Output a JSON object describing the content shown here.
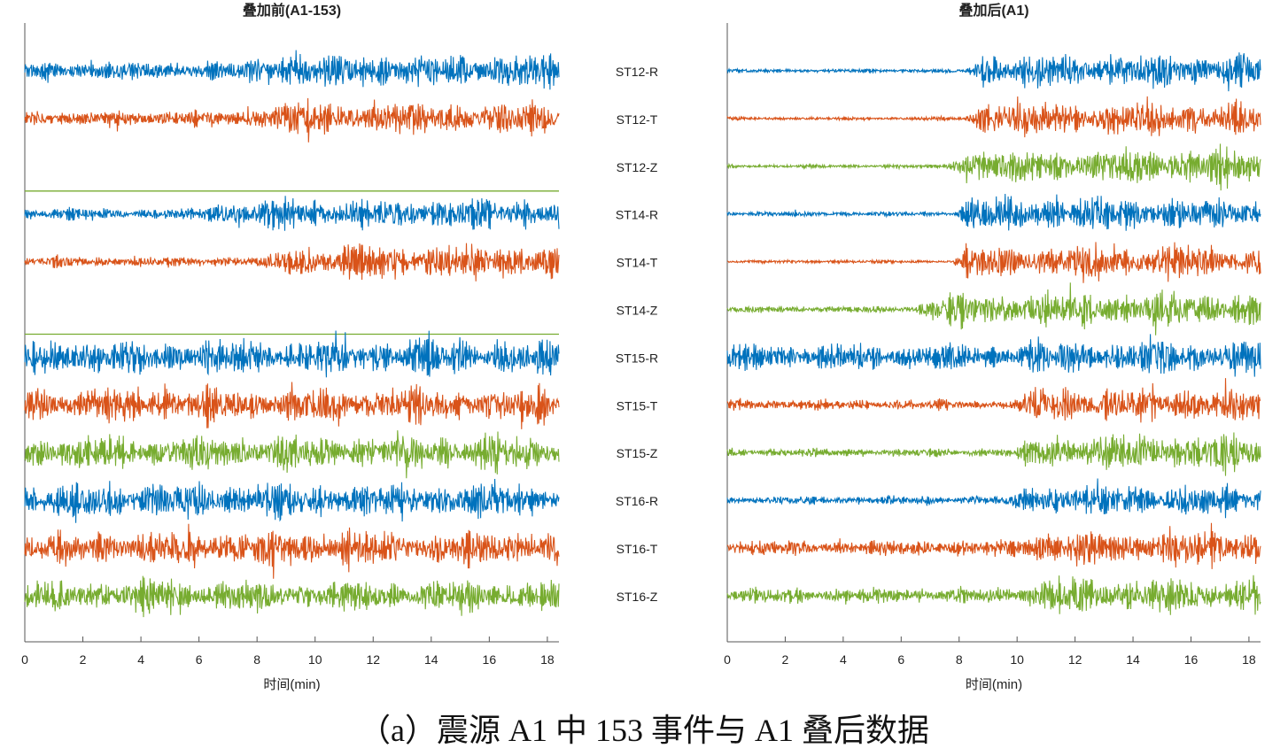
{
  "caption": "（a）震源 A1 中 153 事件与 A1 叠后数据",
  "colors": {
    "R": "#0072BD",
    "T": "#D95319",
    "Z": "#77AC30",
    "axis": "#555555",
    "text": "#222222"
  },
  "chart_data": [
    {
      "type": "line",
      "title": "叠加前(A1-153)",
      "xlabel": "时间(min)",
      "ylabel": "",
      "xlim": [
        0,
        18.4
      ],
      "xticks": [
        0,
        2,
        4,
        6,
        8,
        10,
        12,
        14,
        16,
        18
      ],
      "xtick_labels": [
        "0",
        "2",
        "4",
        "6",
        "8",
        "10",
        "12",
        "14",
        "16",
        "18"
      ],
      "traces": [
        {
          "name": "ST12-R",
          "component": "R",
          "amplitude": 1.0,
          "onset_min": 7.5,
          "pre_level": 0.55,
          "flat": false
        },
        {
          "name": "ST12-T",
          "component": "T",
          "amplitude": 1.0,
          "onset_min": 7.5,
          "pre_level": 0.45,
          "flat": false
        },
        {
          "name": "ST12-Z",
          "component": "Z",
          "amplitude": 0.0,
          "onset_min": 0,
          "pre_level": 0,
          "flat": true
        },
        {
          "name": "ST14-R",
          "component": "R",
          "amplitude": 0.9,
          "onset_min": 6.0,
          "pre_level": 0.35,
          "flat": false
        },
        {
          "name": "ST14-T",
          "component": "T",
          "amplitude": 1.0,
          "onset_min": 8.5,
          "pre_level": 0.3,
          "flat": false
        },
        {
          "name": "ST14-Z",
          "component": "Z",
          "amplitude": 0.0,
          "onset_min": 0,
          "pre_level": 0,
          "flat": true
        },
        {
          "name": "ST15-R",
          "component": "R",
          "amplitude": 1.0,
          "onset_min": 0,
          "pre_level": 1.0,
          "flat": false
        },
        {
          "name": "ST15-T",
          "component": "T",
          "amplitude": 1.0,
          "onset_min": 0,
          "pre_level": 1.0,
          "flat": false
        },
        {
          "name": "ST15-Z",
          "component": "Z",
          "amplitude": 1.0,
          "onset_min": 0,
          "pre_level": 1.0,
          "flat": false
        },
        {
          "name": "ST16-R",
          "component": "R",
          "amplitude": 1.0,
          "onset_min": 0,
          "pre_level": 1.0,
          "flat": false
        },
        {
          "name": "ST16-T",
          "component": "T",
          "amplitude": 1.0,
          "onset_min": 0,
          "pre_level": 1.0,
          "flat": false
        },
        {
          "name": "ST16-Z",
          "component": "Z",
          "amplitude": 0.9,
          "onset_min": 0,
          "pre_level": 1.0,
          "flat": false
        }
      ]
    },
    {
      "type": "line",
      "title": "叠加后(A1)",
      "xlabel": "时间(min)",
      "ylabel": "",
      "xlim": [
        0,
        18.4
      ],
      "xticks": [
        0,
        2,
        4,
        6,
        8,
        10,
        12,
        14,
        16,
        18
      ],
      "xtick_labels": [
        "0",
        "2",
        "4",
        "6",
        "8",
        "10",
        "12",
        "14",
        "16",
        "18"
      ],
      "traces": [
        {
          "name": "ST12-R",
          "component": "R",
          "amplitude": 1.0,
          "onset_min": 8.2,
          "pre_level": 0.12,
          "flat": false
        },
        {
          "name": "ST12-T",
          "component": "T",
          "amplitude": 1.0,
          "onset_min": 8.2,
          "pre_level": 0.1,
          "flat": false
        },
        {
          "name": "ST12-Z",
          "component": "Z",
          "amplitude": 1.0,
          "onset_min": 7.5,
          "pre_level": 0.1,
          "flat": false
        },
        {
          "name": "ST14-R",
          "component": "R",
          "amplitude": 1.0,
          "onset_min": 7.8,
          "pre_level": 0.15,
          "flat": false
        },
        {
          "name": "ST14-T",
          "component": "T",
          "amplitude": 1.0,
          "onset_min": 7.8,
          "pre_level": 0.1,
          "flat": false
        },
        {
          "name": "ST14-Z",
          "component": "Z",
          "amplitude": 1.0,
          "onset_min": 6.5,
          "pre_level": 0.2,
          "flat": false
        },
        {
          "name": "ST15-R",
          "component": "R",
          "amplitude": 1.0,
          "onset_min": 10.0,
          "pre_level": 0.75,
          "flat": false
        },
        {
          "name": "ST15-T",
          "component": "T",
          "amplitude": 1.0,
          "onset_min": 10.0,
          "pre_level": 0.3,
          "flat": false
        },
        {
          "name": "ST15-Z",
          "component": "Z",
          "amplitude": 1.0,
          "onset_min": 10.0,
          "pre_level": 0.25,
          "flat": false
        },
        {
          "name": "ST16-R",
          "component": "R",
          "amplitude": 0.85,
          "onset_min": 9.8,
          "pre_level": 0.3,
          "flat": false
        },
        {
          "name": "ST16-T",
          "component": "T",
          "amplitude": 1.0,
          "onset_min": 9.8,
          "pre_level": 0.45,
          "flat": false
        },
        {
          "name": "ST16-Z",
          "component": "Z",
          "amplitude": 1.0,
          "onset_min": 9.8,
          "pre_level": 0.45,
          "flat": false
        }
      ]
    }
  ],
  "station_labels": [
    "ST12-R",
    "ST12-T",
    "ST12-Z",
    "ST14-R",
    "ST14-T",
    "ST14-Z",
    "ST15-R",
    "ST15-T",
    "ST15-Z",
    "ST16-R",
    "ST16-T",
    "ST16-Z"
  ]
}
